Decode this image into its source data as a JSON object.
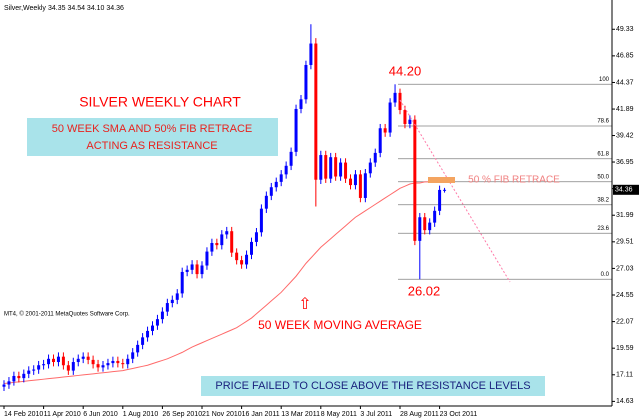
{
  "chart_data": {
    "type": "candlestick",
    "header": {
      "symbol": "Silver,Weekly",
      "quote": "34.35 34.54 34.10 34.36"
    },
    "copyright": "MT4, © 2001-2011 MetaQuotes Software Corp.",
    "title": "SILVER WEEKLY CHART",
    "subtitle_lines": [
      "50 WEEK SMA AND 50% FIB RETRACE",
      "ACTING AS RESISTANCE"
    ],
    "fib_note": "50 % FIB RETRACE",
    "sma_note": "50 WEEK MOVING AVERAGE",
    "conclusion": "PRICE FAILED TO CLOSE ABOVE THE RESISTANCE LEVELS",
    "categories": [
      "14 Feb 2010",
      null,
      null,
      null,
      null,
      null,
      null,
      null,
      "11 Apr 2010",
      null,
      null,
      null,
      null,
      null,
      null,
      null,
      "6 Jun 2010",
      null,
      null,
      null,
      null,
      null,
      null,
      null,
      "1 Aug 2010",
      null,
      null,
      null,
      null,
      null,
      null,
      null,
      "26 Sep 2010",
      null,
      null,
      null,
      null,
      null,
      null,
      null,
      "21 Nov 2010",
      null,
      null,
      null,
      null,
      null,
      null,
      null,
      "16 Jan 2011",
      null,
      null,
      null,
      null,
      null,
      null,
      null,
      "13 Mar 2011",
      null,
      null,
      null,
      null,
      null,
      null,
      null,
      "8 May 2011",
      null,
      null,
      null,
      null,
      null,
      null,
      null,
      "3 Jul 2011",
      null,
      null,
      null,
      null,
      null,
      null,
      null,
      "28 Aug 2011",
      null,
      null,
      null,
      null,
      null,
      null,
      null,
      "23 Oct 2011",
      null
    ],
    "open": [
      16.0,
      16.2,
      16.5,
      17.0,
      16.8,
      17.2,
      17.5,
      17.6,
      18.0,
      18.1,
      18.6,
      18.3,
      18.8,
      18.0,
      17.5,
      18.3,
      18.6,
      18.8,
      18.5,
      18.1,
      17.8,
      18.0,
      18.2,
      18.4,
      18.2,
      18.1,
      18.6,
      19.2,
      19.9,
      20.6,
      21.2,
      21.7,
      22.3,
      23.0,
      23.8,
      24.1,
      24.7,
      26.7,
      26.9,
      27.4,
      26.5,
      27.3,
      28.6,
      29.4,
      29.2,
      30.2,
      30.5,
      28.5,
      27.8,
      27.4,
      28.3,
      29.5,
      30.4,
      32.6,
      33.8,
      34.6,
      35.1,
      35.8,
      36.6,
      37.9,
      41.9,
      42.8,
      46.0,
      48.0,
      35.3,
      37.6,
      35.4,
      37.4,
      35.6,
      36.9,
      35.4,
      34.8,
      35.8,
      33.6,
      35.9,
      36.9,
      37.8,
      40.1,
      39.7,
      42.5,
      43.4,
      41.8,
      40.5,
      40.9,
      29.6,
      31.8,
      30.6,
      31.3,
      32.4,
      34.35
    ],
    "high": [
      16.6,
      16.9,
      17.4,
      17.4,
      17.6,
      17.9,
      18.0,
      18.4,
      18.5,
      19.0,
      19.0,
      19.2,
      19.2,
      18.4,
      18.7,
      19.0,
      19.2,
      19.2,
      18.9,
      18.5,
      18.4,
      18.6,
      18.8,
      18.8,
      18.6,
      19.0,
      19.6,
      20.3,
      21.0,
      21.6,
      22.1,
      22.7,
      23.4,
      24.2,
      24.5,
      25.1,
      27.1,
      27.3,
      27.8,
      27.8,
      27.7,
      29.0,
      29.8,
      29.8,
      30.6,
      30.9,
      30.9,
      28.9,
      28.2,
      28.7,
      29.9,
      30.8,
      33.0,
      34.2,
      35.0,
      35.5,
      36.2,
      37.0,
      38.3,
      42.3,
      43.2,
      46.4,
      49.8,
      48.5,
      38.0,
      38.0,
      37.8,
      37.8,
      37.3,
      37.3,
      35.8,
      36.2,
      36.2,
      36.3,
      37.3,
      38.2,
      40.5,
      40.5,
      42.9,
      44.2,
      43.8,
      42.2,
      41.3,
      41.3,
      32.2,
      32.2,
      31.7,
      32.8,
      34.75,
      34.54
    ],
    "low": [
      15.6,
      15.8,
      16.1,
      16.4,
      16.4,
      16.8,
      17.1,
      17.2,
      17.6,
      17.7,
      17.9,
      17.9,
      17.6,
      17.1,
      17.1,
      17.9,
      18.2,
      18.1,
      17.7,
      17.4,
      17.4,
      17.6,
      17.8,
      17.8,
      17.7,
      17.7,
      18.2,
      18.8,
      19.5,
      20.2,
      20.8,
      21.3,
      21.9,
      22.6,
      23.4,
      23.7,
      24.3,
      26.3,
      26.5,
      26.1,
      26.1,
      26.9,
      28.2,
      28.8,
      28.8,
      29.8,
      28.1,
      27.4,
      27.0,
      27.0,
      27.9,
      29.1,
      30.0,
      32.2,
      33.4,
      34.2,
      34.7,
      35.4,
      36.2,
      37.5,
      41.5,
      42.4,
      45.6,
      32.8,
      34.9,
      35.0,
      35.0,
      35.2,
      35.2,
      35.0,
      34.4,
      34.4,
      33.2,
      33.2,
      35.5,
      36.5,
      37.4,
      39.3,
      39.3,
      42.1,
      41.4,
      40.1,
      40.1,
      29.2,
      26.02,
      30.2,
      30.2,
      30.9,
      32.0,
      34.1
    ],
    "close": [
      16.2,
      16.5,
      17.0,
      16.8,
      17.2,
      17.5,
      17.6,
      18.0,
      18.1,
      18.6,
      18.3,
      18.8,
      18.0,
      17.5,
      18.3,
      18.6,
      18.8,
      18.5,
      18.1,
      17.8,
      18.0,
      18.2,
      18.4,
      18.2,
      18.1,
      18.6,
      19.2,
      19.9,
      20.6,
      21.2,
      21.7,
      22.3,
      23.0,
      23.8,
      24.1,
      24.7,
      26.7,
      26.9,
      27.4,
      26.5,
      27.3,
      28.6,
      29.4,
      29.2,
      30.2,
      30.5,
      28.5,
      27.8,
      27.4,
      28.3,
      29.5,
      30.4,
      32.6,
      33.8,
      34.6,
      35.1,
      35.8,
      36.6,
      37.9,
      41.9,
      42.8,
      46.0,
      48.0,
      35.3,
      37.6,
      35.4,
      37.4,
      35.6,
      36.9,
      35.4,
      34.8,
      35.8,
      33.6,
      35.9,
      36.9,
      37.8,
      40.1,
      39.7,
      42.5,
      43.4,
      41.8,
      40.5,
      40.9,
      29.6,
      31.8,
      30.6,
      31.3,
      32.4,
      34.35,
      34.36
    ],
    "colors": {
      "up": "#0000ff",
      "down": "#ff0000"
    },
    "sma": {
      "color": "#ff6a6a",
      "values": [
        16.3,
        16.35,
        16.4,
        16.45,
        16.5,
        16.55,
        16.6,
        16.65,
        16.7,
        16.75,
        16.8,
        16.85,
        16.9,
        16.95,
        17.0,
        17.05,
        17.1,
        17.15,
        17.2,
        17.25,
        17.3,
        17.35,
        17.4,
        17.45,
        17.5,
        17.6,
        17.7,
        17.8,
        17.9,
        18.0,
        18.15,
        18.3,
        18.45,
        18.6,
        18.8,
        19.0,
        19.2,
        19.45,
        19.7,
        19.9,
        20.1,
        20.3,
        20.5,
        20.7,
        20.9,
        21.1,
        21.3,
        21.5,
        21.8,
        22.1,
        22.4,
        22.8,
        23.2,
        23.6,
        24.0,
        24.4,
        24.8,
        25.3,
        25.8,
        26.3,
        26.9,
        27.5,
        28.0,
        28.5,
        29.0,
        29.4,
        29.8,
        30.2,
        30.6,
        31.0,
        31.4,
        31.8,
        32.1,
        32.4,
        32.7,
        33.0,
        33.3,
        33.6,
        33.9,
        34.2,
        34.5,
        34.7,
        34.9,
        35.0,
        35.0,
        35.1,
        35.1,
        35.2,
        35.2,
        35.2
      ]
    },
    "ylim": [
      14.2,
      51.5
    ],
    "yticks": [
      49.33,
      46.85,
      44.37,
      41.89,
      39.42,
      36.95,
      34.47,
      31.99,
      29.51,
      27.03,
      24.55,
      22.07,
      19.59,
      17.11,
      14.63
    ],
    "fib": {
      "high": {
        "value": 44.2,
        "label": "44.20"
      },
      "low": 26.02,
      "color": "#808080",
      "levels": [
        100,
        78.6,
        61.8,
        {
          "value": 50,
          "label": "50.0"
        },
        38.2,
        23.6,
        {
          "value": 0,
          "label": "0.0"
        }
      ]
    }
  }
}
